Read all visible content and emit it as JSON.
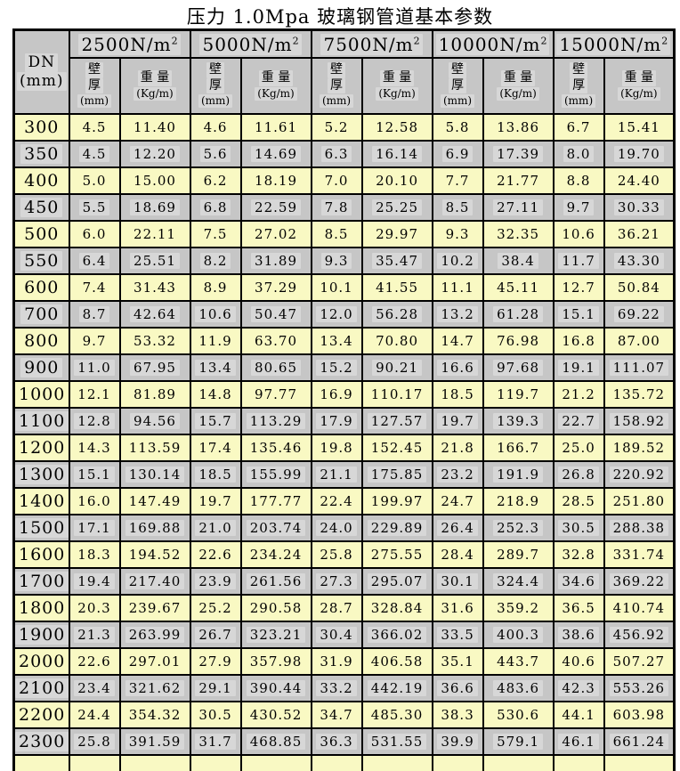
{
  "title": "压力 1.0Mpa 玻璃钢管道基本参数",
  "colors": {
    "row_yellow": "#f9f9c3",
    "row_gray": "#c6c6c6",
    "header_gray": "#c6c6c6",
    "border": "#000000"
  },
  "table": {
    "dn_header": {
      "name": "DN",
      "unit": "(mm)"
    },
    "load_groups": [
      {
        "base": "2500N/m",
        "sup": "2"
      },
      {
        "base": "5000N/m",
        "sup": "2"
      },
      {
        "base": "7500N/m",
        "sup": "2"
      },
      {
        "base": "10000N/m",
        "sup": "2"
      },
      {
        "base": "15000N/m",
        "sup": "2"
      }
    ],
    "sub_headers": {
      "wall_chars": [
        "壁",
        "厚"
      ],
      "wall_unit": "(mm)",
      "weight_label": "重 量",
      "weight_unit": "(Kg/m)"
    },
    "rows": [
      {
        "dn": "300",
        "values": [
          "4.5",
          "11.40",
          "4.6",
          "11.61",
          "5.2",
          "12.58",
          "5.8",
          "13.86",
          "6.7",
          "15.41"
        ]
      },
      {
        "dn": "350",
        "values": [
          "4.5",
          "12.20",
          "5.6",
          "14.69",
          "6.3",
          "16.14",
          "6.9",
          "17.39",
          "8.0",
          "19.70"
        ]
      },
      {
        "dn": "400",
        "values": [
          "5.0",
          "15.00",
          "6.2",
          "18.19",
          "7.0",
          "20.10",
          "7.7",
          "21.77",
          "8.8",
          "24.40"
        ]
      },
      {
        "dn": "450",
        "values": [
          "5.5",
          "18.69",
          "6.8",
          "22.59",
          "7.8",
          "25.25",
          "8.5",
          "27.11",
          "9.7",
          "30.33"
        ]
      },
      {
        "dn": "500",
        "values": [
          "6.0",
          "22.11",
          "7.5",
          "27.02",
          "8.5",
          "29.97",
          "9.3",
          "32.35",
          "10.6",
          "36.21"
        ]
      },
      {
        "dn": "550",
        "values": [
          "6.4",
          "25.51",
          "8.2",
          "31.89",
          "9.3",
          "35.47",
          "10.2",
          "38.4",
          "11.7",
          "43.30"
        ]
      },
      {
        "dn": "600",
        "values": [
          "7.4",
          "31.43",
          "8.9",
          "37.29",
          "10.1",
          "41.55",
          "11.1",
          "45.11",
          "12.7",
          "50.84"
        ]
      },
      {
        "dn": "700",
        "values": [
          "8.7",
          "42.64",
          "10.6",
          "50.47",
          "12.0",
          "56.28",
          "13.2",
          "61.28",
          "15.1",
          "69.22"
        ]
      },
      {
        "dn": "800",
        "values": [
          "9.7",
          "53.32",
          "11.9",
          "63.70",
          "13.4",
          "70.80",
          "14.7",
          "76.98",
          "16.8",
          "87.00"
        ]
      },
      {
        "dn": "900",
        "values": [
          "11.0",
          "67.95",
          "13.4",
          "80.65",
          "15.2",
          "90.21",
          "16.6",
          "97.68",
          "19.1",
          "111.07"
        ]
      },
      {
        "dn": "1000",
        "values": [
          "12.1",
          "81.89",
          "14.8",
          "97.77",
          "16.9",
          "110.17",
          "18.5",
          "119.7",
          "21.2",
          "135.72"
        ]
      },
      {
        "dn": "1100",
        "values": [
          "12.8",
          "94.56",
          "15.7",
          "113.29",
          "17.9",
          "127.57",
          "19.7",
          "139.3",
          "22.7",
          "158.92"
        ]
      },
      {
        "dn": "1200",
        "values": [
          "14.3",
          "113.59",
          "17.4",
          "135.46",
          "19.8",
          "152.45",
          "21.8",
          "166.7",
          "25.0",
          "189.52"
        ]
      },
      {
        "dn": "1300",
        "values": [
          "15.1",
          "130.14",
          "18.5",
          "155.99",
          "21.1",
          "175.85",
          "23.2",
          "191.9",
          "26.8",
          "220.92"
        ]
      },
      {
        "dn": "1400",
        "values": [
          "16.0",
          "147.49",
          "19.7",
          "177.77",
          "22.4",
          "199.97",
          "24.7",
          "218.9",
          "28.5",
          "251.80"
        ]
      },
      {
        "dn": "1500",
        "values": [
          "17.1",
          "169.88",
          "21.0",
          "203.74",
          "24.0",
          "229.89",
          "26.4",
          "252.3",
          "30.5",
          "288.38"
        ]
      },
      {
        "dn": "1600",
        "values": [
          "18.3",
          "194.52",
          "22.6",
          "234.24",
          "25.8",
          "275.55",
          "28.4",
          "289.7",
          "32.8",
          "331.74"
        ]
      },
      {
        "dn": "1700",
        "values": [
          "19.4",
          "217.40",
          "23.9",
          "261.56",
          "27.3",
          "295.07",
          "30.1",
          "324.4",
          "34.6",
          "369.22"
        ]
      },
      {
        "dn": "1800",
        "values": [
          "20.3",
          "239.67",
          "25.2",
          "290.58",
          "28.7",
          "328.84",
          "31.6",
          "359.2",
          "36.5",
          "410.74"
        ]
      },
      {
        "dn": "1900",
        "values": [
          "21.3",
          "263.99",
          "26.7",
          "323.21",
          "30.4",
          "366.02",
          "33.5",
          "400.3",
          "38.6",
          "456.92"
        ]
      },
      {
        "dn": "2000",
        "values": [
          "22.6",
          "297.01",
          "27.9",
          "357.98",
          "31.9",
          "406.58",
          "35.1",
          "443.7",
          "40.6",
          "507.27"
        ]
      },
      {
        "dn": "2100",
        "values": [
          "23.4",
          "321.62",
          "29.1",
          "390.44",
          "33.2",
          "442.19",
          "36.6",
          "483.6",
          "42.3",
          "553.26"
        ]
      },
      {
        "dn": "2200",
        "values": [
          "24.4",
          "354.32",
          "30.5",
          "430.52",
          "34.7",
          "485.30",
          "38.3",
          "530.6",
          "44.1",
          "603.98"
        ]
      },
      {
        "dn": "2300",
        "values": [
          "25.8",
          "391.59",
          "31.7",
          "468.85",
          "36.3",
          "531.55",
          "39.9",
          "579.1",
          "46.1",
          "661.24"
        ]
      }
    ]
  }
}
